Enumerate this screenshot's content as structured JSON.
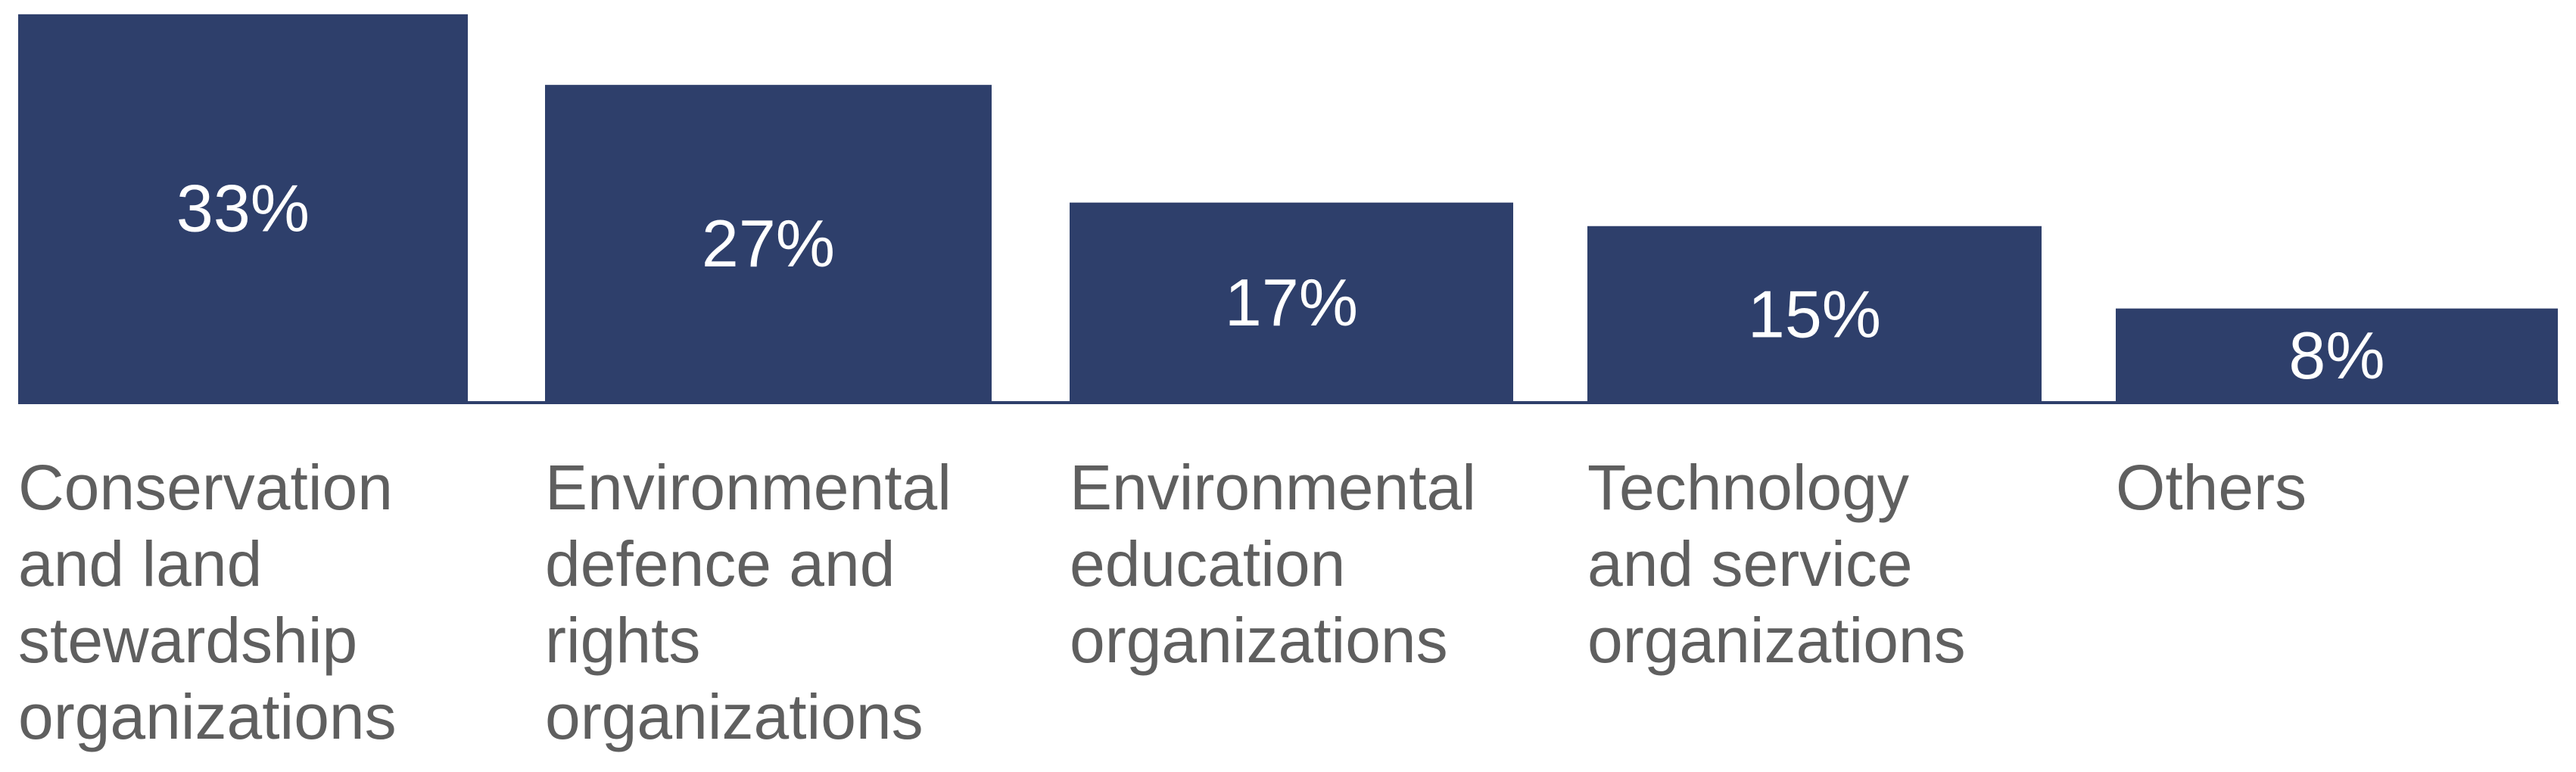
{
  "chart_data": {
    "type": "bar",
    "categories": [
      "Conservation\nand land\nstewardship\norganizations",
      "Environmental\ndefence and\nrights\norganizations",
      "Environmental\neducation\norganizations",
      "Technology\nand service\norganizations",
      "Others"
    ],
    "values": [
      33,
      27,
      17,
      15,
      8
    ],
    "value_labels": [
      "33%",
      "27%",
      "17%",
      "15%",
      "8%"
    ],
    "unit": "%",
    "bar_color": "#2e3f6b",
    "baseline_color": "#2e3f6b",
    "label_color": "#5f5f5f",
    "value_label_color": "#ffffff",
    "grid": false,
    "legend": "none"
  }
}
